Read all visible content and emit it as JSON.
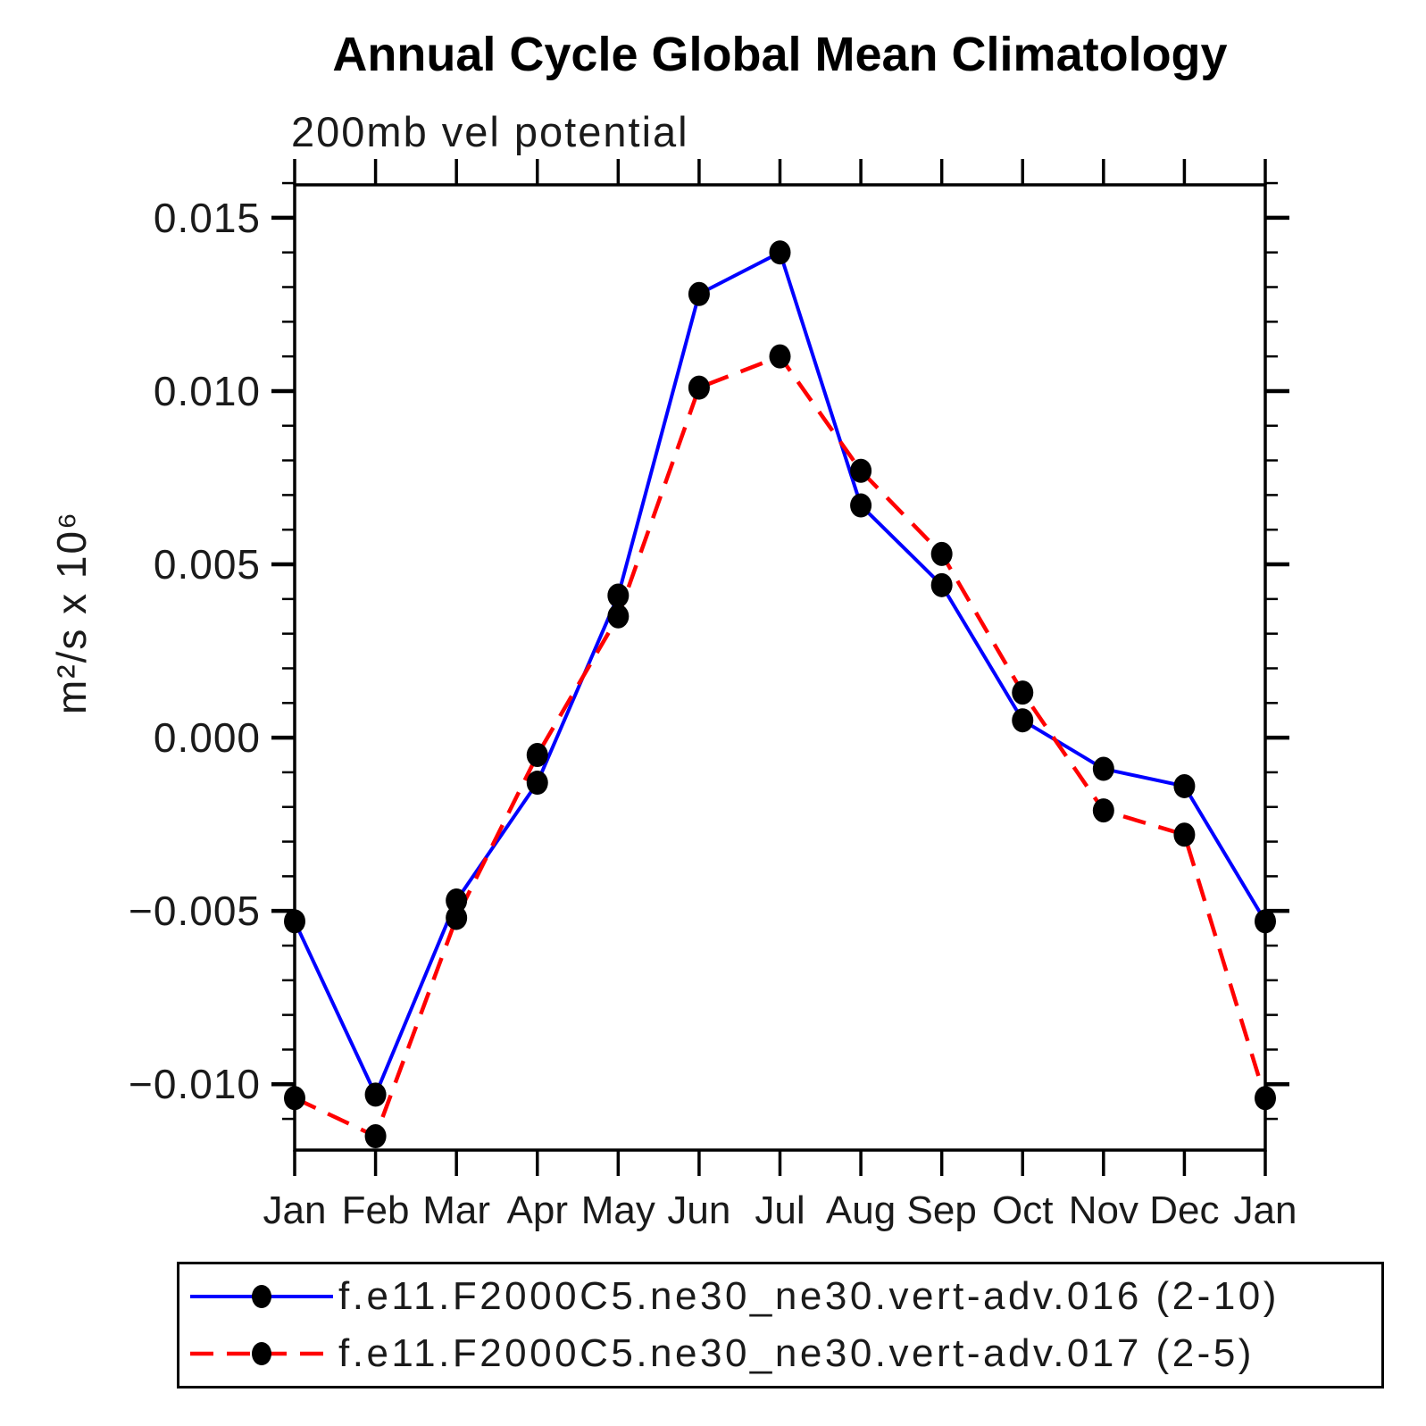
{
  "chart_data": {
    "type": "line",
    "title": "Annual Cycle Global Mean Climatology",
    "subtitle": "200mb vel potential",
    "ylabel": "m²/s x 10⁶",
    "categories": [
      "Jan",
      "Feb",
      "Mar",
      "Apr",
      "May",
      "Jun",
      "Jul",
      "Aug",
      "Sep",
      "Oct",
      "Nov",
      "Dec",
      "Jan"
    ],
    "series": [
      {
        "name": "f.e11.F2000C5.ne30_ne30.vert-adv.016 (2-10)",
        "color": "#0000FF",
        "style": "solid",
        "marker": "black-dot",
        "values": [
          -0.0053,
          -0.0103,
          -0.0047,
          -0.0013,
          0.0041,
          0.0128,
          0.014,
          0.0067,
          0.0044,
          0.0005,
          -0.0009,
          -0.0014,
          -0.0053
        ]
      },
      {
        "name": "f.e11.F2000C5.ne30_ne30.vert-adv.017 (2-5)",
        "color": "#FF0000",
        "style": "dashed",
        "marker": "black-dot",
        "values": [
          -0.0104,
          -0.0115,
          -0.0052,
          -0.0005,
          0.0035,
          0.0101,
          0.011,
          0.0077,
          0.0053,
          0.0013,
          -0.0021,
          -0.0028,
          -0.0104
        ]
      }
    ],
    "ylim": [
      -0.0119,
      0.01595
    ],
    "y_major_ticks": [
      -0.01,
      -0.005,
      0.0,
      0.005,
      0.01,
      0.015
    ],
    "y_tick_labels": [
      "−0.010",
      "−0.005",
      "0.000",
      "0.005",
      "0.010",
      "0.015"
    ],
    "y_minor_step": 0.001,
    "grid": false,
    "legend_position": "bottom",
    "marker_color": "#000000",
    "axis_color": "#000000"
  }
}
